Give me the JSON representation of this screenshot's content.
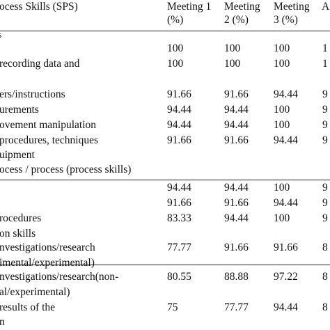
{
  "table": {
    "header": {
      "aspect": "ocess Skills (SPS)",
      "m1": [
        "Meeting 1",
        "(%)"
      ],
      "m2": [
        "Meeting",
        "2 (%)"
      ],
      "m3": [
        "Meeting",
        "3 (%)"
      ],
      "m4": "A"
    },
    "section_marks": {
      "s1": "s"
    },
    "rows": [
      {
        "label": "",
        "v1": "100",
        "v2": "100",
        "v3": "100",
        "v4": "1"
      },
      {
        "label": "recording data and",
        "v1": "100",
        "v2": "100",
        "v3": "100",
        "v4": "1"
      },
      {
        "label": "",
        "v1": "",
        "v2": "",
        "v3": "",
        "v4": ""
      },
      {
        "label": "ers/instructions",
        "v1": "91.66",
        "v2": "91.66",
        "v3": "94.44",
        "v4": "9"
      },
      {
        "label": "urements",
        "v1": "94.44",
        "v2": "94.44",
        "v3": "100",
        "v4": "9"
      },
      {
        "label": "ovement manipulation",
        "v1": "94.44",
        "v2": "94.44",
        "v3": "100",
        "v4": "9"
      },
      {
        "label": "procedures, techniques",
        "v1": "91.66",
        "v2": "91.66",
        "v3": "94.44",
        "v4": "9"
      },
      {
        "label": "uipment",
        "v1": "",
        "v2": "",
        "v3": "",
        "v4": ""
      },
      {
        "label": "ocess / process (process skills)",
        "v1": "",
        "v2": "",
        "v3": "",
        "v4": ""
      },
      {
        "label": "",
        "v1": "94.44",
        "v2": "94.44",
        "v3": "100",
        "v4": "9"
      },
      {
        "label": "",
        "v1": "91.66",
        "v2": "91.66",
        "v3": "94.44",
        "v4": "9"
      },
      {
        "label": "rocedures",
        "v1": "83.33",
        "v2": "94.44",
        "v3": "100",
        "v4": "9"
      },
      {
        "label": "on skills",
        "v1": "",
        "v2": "",
        "v3": "",
        "v4": ""
      },
      {
        "label": "nvestigations/research",
        "v1": "77.77",
        "v2": "91.66",
        "v3": "91.66",
        "v4": "8"
      },
      {
        "label": "imental/experimental)",
        "v1": "",
        "v2": "",
        "v3": "",
        "v4": ""
      },
      {
        "label": "nvestigations/research(non-",
        "v1": "80.55",
        "v2": "88.88",
        "v3": "97.22",
        "v4": "8"
      },
      {
        "label": "al/experimental)",
        "v1": "",
        "v2": "",
        "v3": "",
        "v4": ""
      },
      {
        "label": "results of the",
        "v1": "75",
        "v2": "77.77",
        "v3": "94.44",
        "v4": "8"
      },
      {
        "label": "n",
        "v1": "",
        "v2": "",
        "v3": "",
        "v4": ""
      }
    ]
  }
}
